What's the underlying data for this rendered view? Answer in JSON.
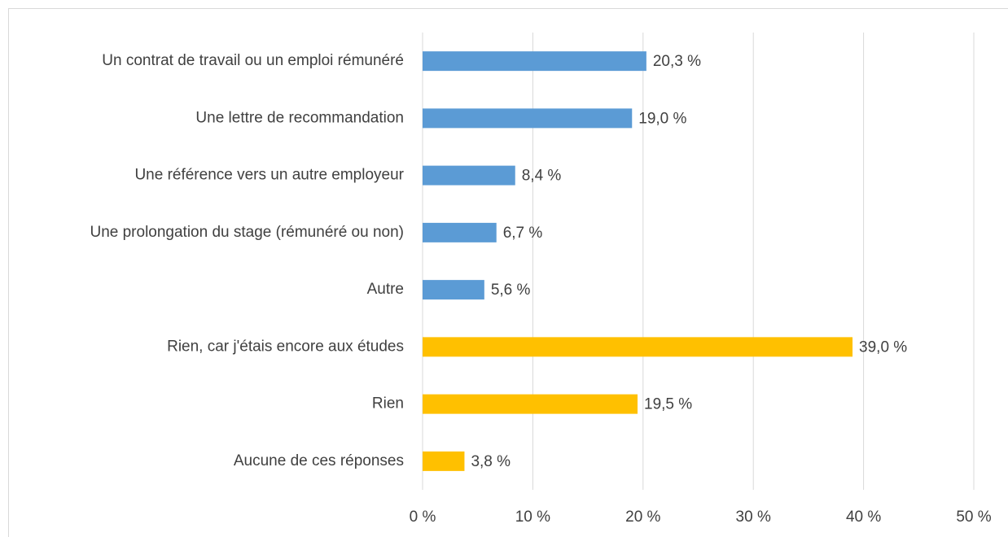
{
  "chart_data": {
    "type": "hbar",
    "categories": [
      "Un contrat de travail ou un emploi rémunéré",
      "Une lettre de recommandation",
      "Une référence vers un autre employeur",
      "Une prolongation du stage (rémunéré ou non)",
      "Autre",
      "Rien, car j'étais encore aux études",
      "Rien",
      "Aucune de ces réponses"
    ],
    "values": [
      20.3,
      19.0,
      8.4,
      6.7,
      5.6,
      39.0,
      19.5,
      3.8
    ],
    "value_labels": [
      "20,3 %",
      "19,0 %",
      "8,4 %",
      "6,7 %",
      "5,6 %",
      "39,0 %",
      "19,5 %",
      "3,8 %"
    ],
    "colors": [
      "#5b9bd5",
      "#5b9bd5",
      "#5b9bd5",
      "#5b9bd5",
      "#5b9bd5",
      "#ffc000",
      "#ffc000",
      "#ffc000"
    ],
    "xlim": [
      0,
      50
    ],
    "xticks": [
      {
        "value": 0,
        "label": "0 %"
      },
      {
        "value": 10,
        "label": "10 %"
      },
      {
        "value": 20,
        "label": "20 %"
      },
      {
        "value": 30,
        "label": "30 %"
      },
      {
        "value": 40,
        "label": "40 %"
      },
      {
        "value": 50,
        "label": "50 %"
      }
    ],
    "grid": true
  }
}
